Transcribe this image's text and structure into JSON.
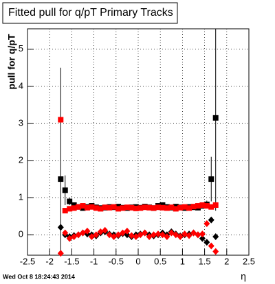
{
  "chart_data": {
    "type": "scatter",
    "title": "Fitted pull for q/pT  Primary Tracks",
    "y_label": "pull for q/pT",
    "x_label": "η",
    "footer": "Wed Oct  8 18:24:43 2014",
    "xlim": [
      -2.5,
      2.5
    ],
    "ylim": [
      -0.55,
      5.55
    ],
    "xticks": [
      -2.5,
      -2,
      -1.5,
      -1,
      -0.5,
      0,
      0.5,
      1,
      1.5,
      2,
      2.5
    ],
    "yticks": [
      0,
      1,
      2,
      3,
      4,
      5
    ],
    "grid": true,
    "x": [
      -1.75,
      -1.65,
      -1.55,
      -1.45,
      -1.35,
      -1.25,
      -1.15,
      -1.05,
      -0.95,
      -0.85,
      -0.75,
      -0.65,
      -0.55,
      -0.45,
      -0.35,
      -0.25,
      -0.15,
      -0.05,
      0.05,
      0.15,
      0.25,
      0.35,
      0.45,
      0.55,
      0.65,
      0.75,
      0.85,
      0.95,
      1.05,
      1.15,
      1.25,
      1.35,
      1.45,
      1.55,
      1.65,
      1.75
    ],
    "series": [
      {
        "color": "#000000",
        "marker": "square",
        "values": [
          1.5,
          1.2,
          0.9,
          0.8,
          0.75,
          0.72,
          0.75,
          0.78,
          0.74,
          0.72,
          0.73,
          0.75,
          0.74,
          0.76,
          0.73,
          0.72,
          0.74,
          0.75,
          0.73,
          0.76,
          0.74,
          0.72,
          0.78,
          0.8,
          0.75,
          0.73,
          0.76,
          0.74,
          0.72,
          0.75,
          0.74,
          0.73,
          0.78,
          0.82,
          1.5,
          3.15
        ],
        "errors": [
          3.0,
          0.4,
          0.1,
          0.05,
          0.05,
          0.05,
          0.05,
          0.05,
          0.05,
          0.05,
          0.05,
          0.05,
          0.05,
          0.05,
          0.05,
          0.05,
          0.05,
          0.05,
          0.05,
          0.05,
          0.05,
          0.05,
          0.05,
          0.05,
          0.05,
          0.05,
          0.05,
          0.05,
          0.05,
          0.05,
          0.05,
          0.05,
          0.05,
          0.1,
          0.6,
          2.5
        ]
      },
      {
        "color": "#ff0000",
        "marker": "square",
        "values": [
          3.1,
          0.65,
          0.7,
          0.72,
          0.75,
          0.78,
          0.73,
          0.75,
          0.72,
          0.7,
          0.74,
          0.73,
          0.75,
          0.7,
          0.72,
          0.74,
          0.73,
          0.71,
          0.72,
          0.74,
          0.73,
          0.72,
          0.74,
          0.73,
          0.72,
          0.74,
          0.7,
          0.73,
          0.75,
          0.72,
          0.76,
          0.78,
          0.8,
          0.78,
          0.75,
          0.8
        ]
      },
      {
        "color": "#000000",
        "marker": "diamond",
        "values": [
          0.2,
          0.0,
          -0.05,
          -0.02,
          0.0,
          0.05,
          0.02,
          0.0,
          -0.03,
          0.05,
          0.08,
          0.02,
          0.0,
          -0.02,
          0.03,
          0.0,
          -0.05,
          0.0,
          0.02,
          0.05,
          0.0,
          -0.03,
          0.0,
          0.05,
          0.0,
          0.08,
          0.02,
          -0.03,
          0.0,
          0.02,
          0.05,
          0.0,
          -0.1,
          -0.2,
          0.4,
          -0.05
        ]
      },
      {
        "color": "#ff0000",
        "marker": "diamond",
        "values": [
          -0.5,
          0.05,
          -0.1,
          -0.05,
          0.0,
          0.05,
          0.1,
          -0.05,
          0.0,
          0.08,
          0.12,
          0.0,
          -0.05,
          0.0,
          0.05,
          0.1,
          -0.02,
          -0.05,
          0.0,
          0.05,
          -0.05,
          0.0,
          0.02,
          0.0,
          -0.05,
          0.05,
          0.0,
          -0.05,
          0.02,
          -0.02,
          0.05,
          0.0,
          0.02,
          0.3,
          -0.3,
          -0.45
        ]
      }
    ]
  }
}
